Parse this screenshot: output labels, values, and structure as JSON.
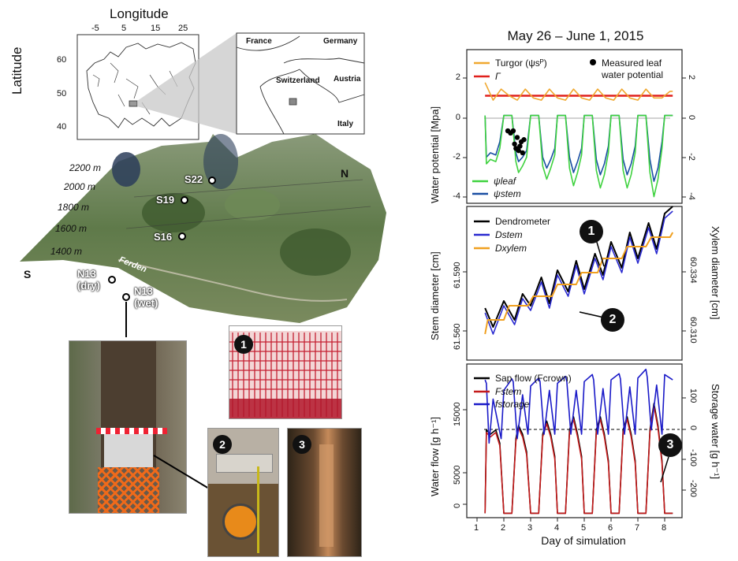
{
  "map": {
    "longitude_label": "Longitude",
    "latitude_label": "Latitude",
    "lon_ticks": [
      "-5",
      "5",
      "15",
      "25"
    ],
    "lat_ticks": [
      "60",
      "50",
      "40"
    ],
    "inset": {
      "france": "France",
      "germany": "Germany",
      "switzerland": "Switzerland",
      "austria": "Austria",
      "italy": "Italy"
    }
  },
  "terrain": {
    "elevations": [
      "2200 m",
      "2000 m",
      "1800 m",
      "1600 m",
      "1400 m"
    ],
    "sites": [
      "S22",
      "S19",
      "S16",
      "N13 (dry)",
      "N13 (wet)"
    ],
    "village": "Ferden",
    "south": "S",
    "north": "N"
  },
  "photo_labels": [
    "1",
    "2",
    "3"
  ],
  "charts_title": "May 26 – June 1, 2015",
  "colors": {
    "turgor": "#f0a830",
    "gamma": "#e0201c",
    "leaf": "#3fd23f",
    "stem_wp": "#1a4fa3",
    "dendro": "#000000",
    "dstem": "#2a2ad0",
    "dxylem": "#f0a020",
    "sap": "#000000",
    "fstem": "#c41a1a",
    "fstorage": "#1a1ac8"
  },
  "chart_data": [
    {
      "type": "line",
      "title": "May 26 – June 1, 2015",
      "ylabel": "Water potential [Mpa]",
      "yticks": [
        "2",
        "0",
        "-2",
        "-4"
      ],
      "ylim": [
        -4,
        3
      ],
      "legend": [
        "Turgor (ψsᴾ)",
        "Γ",
        "Measured leaf water potential",
        "ψleaf",
        "ψstem"
      ],
      "series": [
        {
          "name": "Γ",
          "x": [
            1.3,
            8.3
          ],
          "y": [
            0.9,
            0.9
          ]
        },
        {
          "name": "Turgor (ψsᴾ)",
          "x": [
            1.3,
            1.6,
            1.9,
            2.2,
            2.5,
            2.8,
            3.1,
            3.4,
            3.7,
            4.0,
            4.3,
            4.6,
            4.9,
            5.2,
            5.5,
            5.8,
            6.1,
            6.4,
            6.7,
            7.0,
            7.3,
            7.6,
            7.9,
            8.2,
            8.3
          ],
          "y": [
            1.5,
            0.7,
            1.2,
            0.9,
            0.7,
            1.2,
            0.8,
            0.7,
            1.2,
            0.8,
            0.7,
            1.2,
            0.8,
            0.7,
            1.2,
            0.8,
            0.7,
            1.2,
            0.8,
            0.7,
            1.2,
            0.8,
            0.8,
            1.1,
            1.1
          ]
        },
        {
          "name": "ψstem",
          "x": [
            1.3,
            1.35,
            1.5,
            1.7,
            1.85,
            2.0,
            2.3,
            2.45,
            2.55,
            2.7,
            2.85,
            3.0,
            3.3,
            3.45,
            3.6,
            3.75,
            3.9,
            4.0,
            4.3,
            4.45,
            4.6,
            4.75,
            4.9,
            5.0,
            5.3,
            5.45,
            5.6,
            5.75,
            5.9,
            6.0,
            6.3,
            6.45,
            6.6,
            6.75,
            6.9,
            7.0,
            7.3,
            7.45,
            7.6,
            7.75,
            7.9,
            8.0,
            8.3
          ],
          "y": [
            0,
            -1.9,
            -1.7,
            -1.8,
            -1.2,
            0,
            0,
            -1.7,
            -2.1,
            -1.9,
            -1.6,
            0,
            0,
            -1.9,
            -2.4,
            -2.0,
            -1.5,
            0,
            0,
            -1.9,
            -2.6,
            -2.1,
            -1.5,
            0,
            0,
            -2.0,
            -2.7,
            -2.2,
            -1.4,
            0,
            0,
            -2.0,
            -2.7,
            -2.2,
            -1.4,
            0,
            0,
            -2.0,
            -3.0,
            -2.4,
            -1.2,
            0,
            0
          ]
        },
        {
          "name": "ψleaf",
          "x": [
            1.3,
            1.35,
            1.5,
            1.7,
            1.85,
            2.0,
            2.3,
            2.45,
            2.55,
            2.7,
            2.85,
            3.0,
            3.3,
            3.45,
            3.6,
            3.75,
            3.9,
            4.0,
            4.3,
            4.45,
            4.6,
            4.75,
            4.9,
            5.0,
            5.3,
            5.45,
            5.6,
            5.75,
            5.9,
            6.0,
            6.3,
            6.45,
            6.6,
            6.75,
            6.9,
            7.0,
            7.3,
            7.45,
            7.6,
            7.75,
            7.9,
            8.0,
            8.3
          ],
          "y": [
            0,
            -2.2,
            -2.0,
            -2.1,
            -1.5,
            0,
            0,
            -2.1,
            -2.6,
            -2.3,
            -1.9,
            0,
            0,
            -2.3,
            -2.9,
            -2.4,
            -1.8,
            0,
            0,
            -2.4,
            -3.2,
            -2.6,
            -1.8,
            0,
            0,
            -2.5,
            -3.3,
            -2.7,
            -1.7,
            0,
            0,
            -2.5,
            -3.3,
            -2.7,
            -1.7,
            0,
            0,
            -2.6,
            -3.7,
            -2.9,
            -1.5,
            0,
            0
          ]
        },
        {
          "name": "Measured leaf water potential",
          "x": [
            2.15,
            2.25,
            2.35,
            2.4,
            2.45,
            2.5,
            2.55,
            2.6,
            2.65,
            2.7,
            2.75
          ],
          "y": [
            -0.7,
            -0.8,
            -0.7,
            -1.3,
            -1.5,
            -1.0,
            -1.6,
            -1.4,
            -1.2,
            -1.7,
            -1.1
          ]
        }
      ]
    },
    {
      "type": "line",
      "ylabel": "Stem diameter [cm]",
      "y2label": "Xylem diameter [cm]",
      "yticks": [
        "61.590",
        "61.560"
      ],
      "y2ticks": [
        "60.334",
        "60.310"
      ],
      "ylim": [
        61.555,
        61.62
      ],
      "legend": [
        "Dendrometer",
        "Dstem",
        "Dxylem"
      ],
      "series": [
        {
          "name": "Dendrometer",
          "x": [
            1.3,
            1.6,
            2.0,
            2.4,
            2.7,
            3.0,
            3.4,
            3.7,
            4.0,
            4.4,
            4.7,
            5.0,
            5.4,
            5.7,
            6.0,
            6.4,
            6.7,
            7.0,
            7.4,
            7.7,
            8.0,
            8.3
          ],
          "y": [
            61.577,
            61.569,
            61.58,
            61.572,
            61.583,
            61.578,
            61.59,
            61.579,
            61.593,
            61.584,
            61.597,
            61.585,
            61.6,
            61.591,
            61.605,
            61.594,
            61.609,
            61.598,
            61.613,
            61.602,
            61.617,
            61.62
          ]
        },
        {
          "name": "Dstem",
          "x": [
            1.3,
            1.6,
            2.0,
            2.4,
            2.7,
            3.0,
            3.4,
            3.7,
            4.0,
            4.4,
            4.7,
            5.0,
            5.4,
            5.7,
            6.0,
            6.4,
            6.7,
            7.0,
            7.4,
            7.7,
            8.0,
            8.3
          ],
          "y": [
            61.575,
            61.566,
            61.578,
            61.57,
            61.581,
            61.576,
            61.588,
            61.577,
            61.591,
            61.582,
            61.595,
            61.583,
            61.598,
            61.589,
            61.603,
            61.592,
            61.607,
            61.596,
            61.611,
            61.6,
            61.615,
            61.618
          ]
        },
        {
          "name": "Dxylem",
          "x": [
            1.3,
            1.4,
            2.0,
            2.2,
            2.9,
            3.1,
            3.8,
            4.0,
            4.7,
            4.9,
            5.5,
            5.7,
            6.4,
            6.6,
            7.3,
            7.5,
            8.2,
            8.3
          ],
          "y": [
            61.566,
            61.572,
            61.572,
            61.578,
            61.578,
            61.582,
            61.582,
            61.587,
            61.587,
            61.592,
            61.592,
            61.598,
            61.598,
            61.603,
            61.603,
            61.607,
            61.607,
            61.609
          ]
        }
      ]
    },
    {
      "type": "line",
      "xlabel": "Day of simulation",
      "ylabel": "Water flow [g h⁻¹]",
      "y2label": "Storage water [g h⁻¹]",
      "xticks": [
        "1",
        "2",
        "3",
        "4",
        "5",
        "6",
        "7",
        "8"
      ],
      "yticks": [
        "15000",
        "5000",
        "0"
      ],
      "y2ticks": [
        "100",
        "0",
        "-100",
        "-200"
      ],
      "ylim": [
        -500,
        17000
      ],
      "legend": [
        "Sap flow (Fcrown)",
        "Fstem",
        "fstorage"
      ],
      "series": [
        {
          "name": "Sap flow (Fcrown)",
          "x": [
            1.3,
            1.35,
            1.5,
            1.7,
            1.85,
            2.0,
            2.3,
            2.45,
            2.55,
            2.7,
            2.85,
            3.0,
            3.3,
            3.45,
            3.6,
            3.75,
            3.9,
            4.0,
            4.3,
            4.45,
            4.6,
            4.75,
            4.9,
            5.0,
            5.3,
            5.45,
            5.6,
            5.75,
            5.9,
            6.0,
            6.3,
            6.45,
            6.6,
            6.75,
            6.9,
            7.0,
            7.3,
            7.45,
            7.6,
            7.75,
            7.9,
            8.0,
            8.3
          ],
          "y": [
            0,
            9500,
            9000,
            9500,
            8000,
            0,
            0,
            8500,
            10000,
            9000,
            7000,
            0,
            0,
            9000,
            10500,
            9000,
            6500,
            0,
            0,
            9500,
            11000,
            9000,
            6500,
            0,
            0,
            9500,
            11000,
            9000,
            6000,
            0,
            0,
            9500,
            11000,
            9000,
            6000,
            0,
            0,
            9500,
            12500,
            10000,
            6000,
            0,
            0
          ]
        },
        {
          "name": "Fstem",
          "x": [
            1.3,
            1.35,
            1.5,
            1.7,
            1.85,
            2.0,
            2.3,
            2.45,
            2.55,
            2.7,
            2.85,
            3.0,
            3.3,
            3.45,
            3.6,
            3.75,
            3.9,
            4.0,
            4.3,
            4.45,
            4.6,
            4.75,
            4.9,
            5.0,
            5.3,
            5.45,
            5.6,
            5.75,
            5.9,
            6.0,
            6.3,
            6.45,
            6.6,
            6.75,
            6.9,
            7.0,
            7.3,
            7.45,
            7.6,
            7.75,
            7.9,
            8.0,
            8.3
          ],
          "y": [
            0,
            9200,
            8700,
            9200,
            7700,
            0,
            0,
            8200,
            9700,
            8700,
            6700,
            0,
            0,
            8700,
            10200,
            8700,
            6200,
            0,
            0,
            9200,
            10700,
            8700,
            6200,
            0,
            0,
            9200,
            10700,
            8700,
            5700,
            0,
            0,
            9200,
            10700,
            8700,
            5700,
            0,
            0,
            9200,
            12200,
            9700,
            5700,
            0,
            0
          ]
        },
        {
          "name": "fstorage",
          "x": [
            1.3,
            1.35,
            1.45,
            1.6,
            1.9,
            2.0,
            2.3,
            2.35,
            2.5,
            2.7,
            2.9,
            3.0,
            3.3,
            3.35,
            3.5,
            3.7,
            3.9,
            4.0,
            4.3,
            4.35,
            4.5,
            4.7,
            4.9,
            5.0,
            5.3,
            5.35,
            5.5,
            5.7,
            5.9,
            6.0,
            6.3,
            6.35,
            6.5,
            6.7,
            6.9,
            7.0,
            7.3,
            7.35,
            7.5,
            7.7,
            7.9,
            8.0,
            8.3
          ],
          "y": [
            15200,
            14800,
            8000,
            13000,
            8500,
            14000,
            15300,
            15000,
            8500,
            13500,
            9000,
            14500,
            15400,
            15000,
            9000,
            14000,
            9000,
            14800,
            15600,
            15000,
            9000,
            14000,
            9000,
            15000,
            15800,
            15200,
            9000,
            14200,
            9000,
            15200,
            15900,
            15300,
            9000,
            14400,
            9000,
            15400,
            16400,
            15500,
            9500,
            14600,
            9000,
            15800,
            15200
          ]
        }
      ]
    }
  ]
}
